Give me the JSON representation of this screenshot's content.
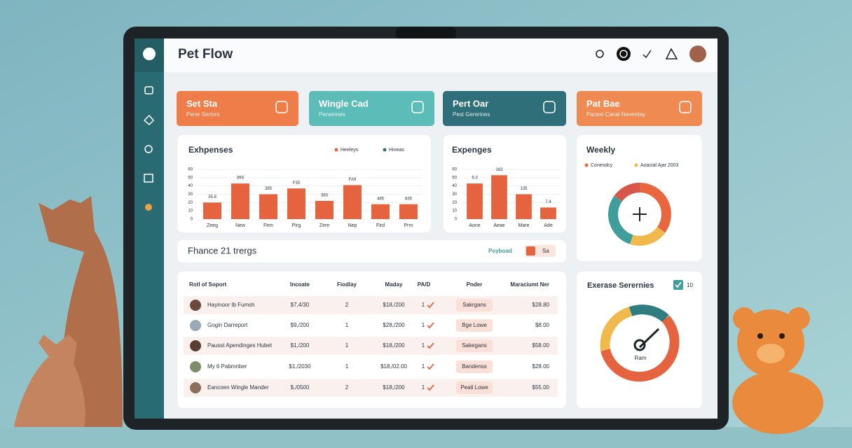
{
  "header": {
    "title": "Pet Flow"
  },
  "stat_cards": [
    {
      "title": "Set Sta",
      "subtitle": "Perer Sertors"
    },
    {
      "title": "Wingle Cad",
      "subtitle": "Peneinnes"
    },
    {
      "title": "Pert Oar",
      "subtitle": "Pest Gererines"
    },
    {
      "title": "Pat Bae",
      "subtitle": "Pacest Canal Neverday"
    }
  ],
  "expenses": {
    "type": "bar",
    "title": "Exhpenses",
    "legend": [
      "Heeleys",
      "Hineas"
    ],
    "categories": [
      "Zeeg",
      "New",
      "Fem",
      "Pirg",
      "Zere",
      "Nep",
      "Fird",
      "Prrn"
    ],
    "values": [
      20,
      43,
      30,
      37,
      22,
      41,
      18,
      18
    ],
    "bar_captions": [
      "35.8",
      "39S",
      "385",
      "F35",
      "383",
      "FA9",
      "485",
      "835"
    ],
    "ylim": [
      0,
      60
    ],
    "yticks": [
      0,
      10,
      20,
      30,
      40,
      50,
      60
    ],
    "color": "#e5643f"
  },
  "expenses_2": {
    "type": "bar",
    "title": "Expenges",
    "categories": [
      "Aone",
      "Aeae",
      "Mare",
      "Ade"
    ],
    "values": [
      43,
      53,
      30,
      14
    ],
    "bar_captions": [
      "5.3",
      "163",
      "135",
      "7.4"
    ],
    "ylim": [
      0,
      60
    ],
    "yticks": [
      0,
      10,
      20,
      30,
      40,
      50,
      60
    ],
    "color": "#e5643f"
  },
  "weekly": {
    "type": "pie",
    "title": "Weekly",
    "legend": [
      "Conesdcy",
      "Aoacial Ajar 2003"
    ],
    "values": [
      35,
      20,
      30,
      15
    ],
    "colors": [
      "#e8673f",
      "#f0b94b",
      "#3f9d9a",
      "#d9574a"
    ]
  },
  "finance": {
    "title": "Fhance 21 trergs",
    "link": "Poyboad",
    "button": "Sa"
  },
  "table": {
    "columns": [
      "Rotl of Soport",
      "Incoate",
      "Fiodlay",
      "Maday",
      "PA/D",
      "Pnder",
      "Maraciumt Ner"
    ],
    "rows": [
      [
        "Hayinoor Ib Fumsh",
        "$7,4/30",
        "2",
        "$18,/200",
        "1",
        "Sakrgans",
        "$28.80"
      ],
      [
        "Gogin Darreport",
        "$9,/200",
        "1",
        "$28,/200",
        "1",
        "Bge Lowe",
        "$8.00"
      ],
      [
        "Pausst Apendinges Hubet",
        "$1,/200",
        "1",
        "$18,/200",
        "1",
        "Sakegans",
        "$58.00"
      ],
      [
        "My 6 Pabmnber",
        "$1,/2030",
        "1",
        "$18,/02.00",
        "1",
        "Bandenss",
        "$28.00"
      ],
      [
        "Eancoen Wingle Mander",
        "$,/0500",
        "2",
        "$18,/200",
        "1",
        "Peatl Lowe",
        "$55.00"
      ]
    ]
  },
  "gauge": {
    "title": "Exerase Serernies",
    "badge": "10",
    "caption": "Ram"
  }
}
